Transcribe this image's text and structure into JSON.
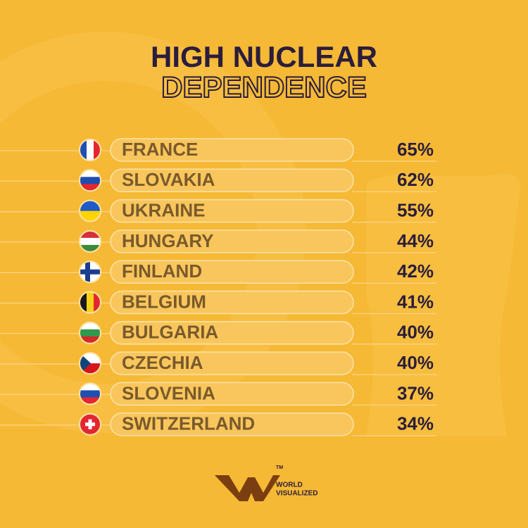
{
  "header": {
    "title_line1": "HIGH NUCLEAR",
    "title_line2": "DEPENDENCE"
  },
  "rows": [
    {
      "country": "FRANCE",
      "share": "65%"
    },
    {
      "country": "SLOVAKIA",
      "share": "62%"
    },
    {
      "country": "UKRAINE",
      "share": "55%"
    },
    {
      "country": "HUNGARY",
      "share": "44%"
    },
    {
      "country": "FINLAND",
      "share": "42%"
    },
    {
      "country": "BELGIUM",
      "share": "41%"
    },
    {
      "country": "BULGARIA",
      "share": "40%"
    },
    {
      "country": "CZECHIA",
      "share": "40%"
    },
    {
      "country": "SLOVENIA",
      "share": "37%"
    },
    {
      "country": "SWITZERLAND",
      "share": "34%"
    }
  ],
  "footer": {
    "brand_line1": "WORLD",
    "brand_line2": "VISUALIZED",
    "trademark": "TM"
  }
}
